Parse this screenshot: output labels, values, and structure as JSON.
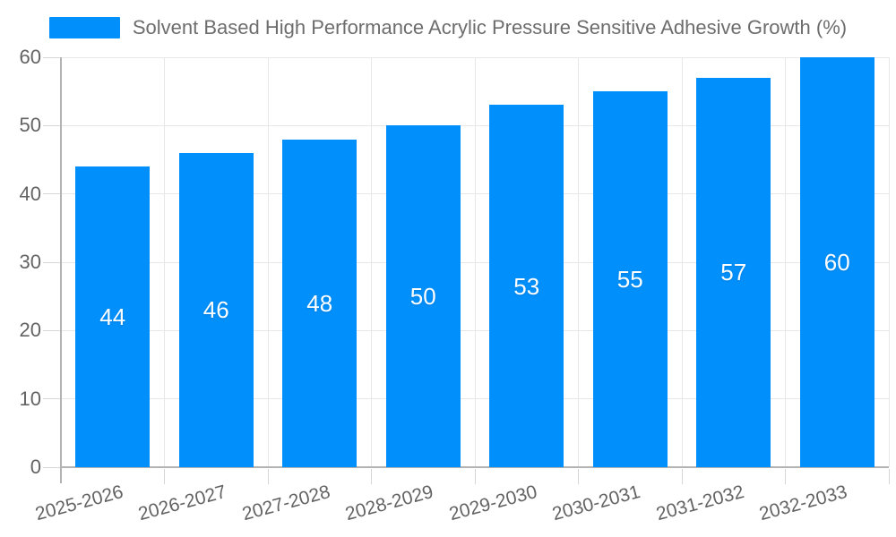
{
  "chart_data": {
    "type": "bar",
    "title": "",
    "xlabel": "",
    "ylabel": "",
    "legend_position": "top",
    "grid": true,
    "categories": [
      "2025-2026",
      "2026-2027",
      "2027-2028",
      "2028-2029",
      "2029-2030",
      "2030-2031",
      "2031-2032",
      "2032-2033"
    ],
    "series": [
      {
        "name": "Solvent Based High Performance Acrylic Pressure Sensitive Adhesive Growth (%)",
        "values": [
          44,
          46,
          48,
          50,
          53,
          55,
          57,
          60
        ]
      }
    ],
    "ylim": [
      0,
      60
    ],
    "ytick_step": 10,
    "yticks": [
      0,
      10,
      20,
      30,
      40,
      50,
      60
    ],
    "colors": {
      "bar": "#008FFB",
      "value_label": "#ffffff",
      "legend_text": "#6d6d6d",
      "axis_label": "#636363",
      "gridline": "#e7e7e7",
      "axis_line": "#b3b3b3",
      "tick": "#d6d6d6"
    }
  }
}
